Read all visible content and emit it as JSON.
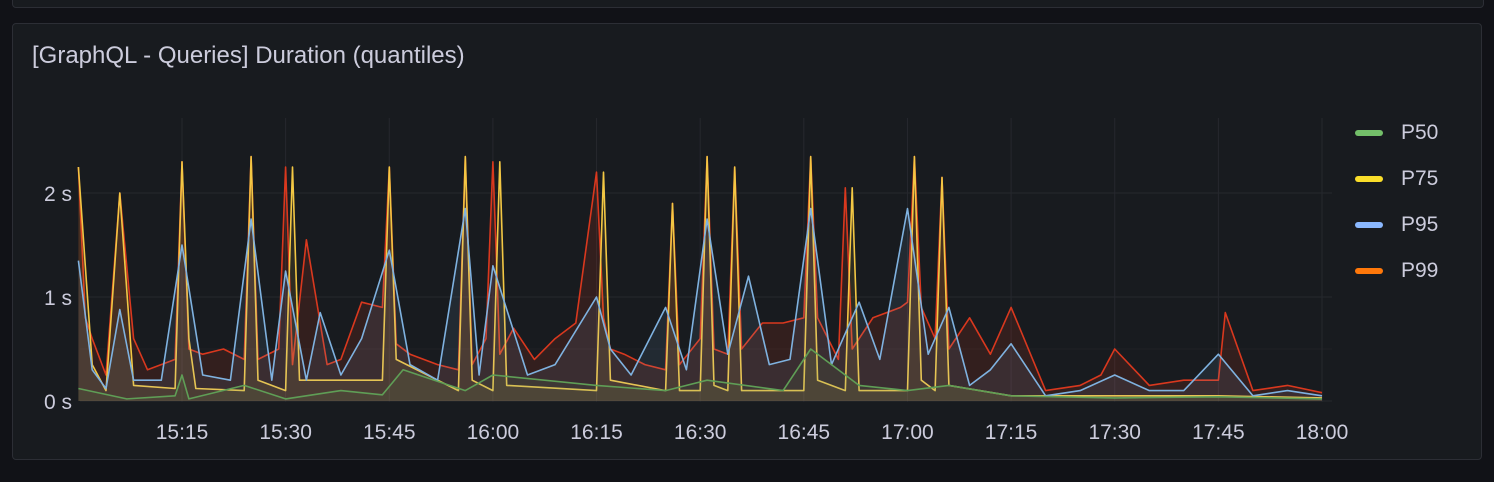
{
  "panel": {
    "title": "[GraphQL - Queries] Duration (quantiles)"
  },
  "legend": [
    {
      "label": "P50",
      "color": "#73bf69"
    },
    {
      "label": "P75",
      "color": "#fade2a"
    },
    {
      "label": "P95",
      "color": "#8ab8ff"
    },
    {
      "label": "P99",
      "color": "#ff780a"
    }
  ],
  "chart_data": {
    "type": "area",
    "title": "[GraphQL - Queries] Duration (quantiles)",
    "xlabel": "",
    "ylabel": "",
    "x_ticks": [
      "15:15",
      "15:30",
      "15:45",
      "16:00",
      "16:15",
      "16:30",
      "16:45",
      "17:00",
      "17:15",
      "17:30",
      "17:45",
      "18:00"
    ],
    "y_ticks": [
      "0 s",
      "1 s",
      "2 s"
    ],
    "y_tick_values": [
      0,
      1,
      2
    ],
    "xlim_minutes_from_15_00": [
      0,
      180
    ],
    "ylim": [
      0,
      2.5
    ],
    "grid": true,
    "legend_position": "right",
    "series": [
      {
        "name": "P50",
        "color": "#73bf69",
        "x": [
          "15:00",
          "15:07",
          "15:14",
          "15:15",
          "15:16",
          "15:24",
          "15:30",
          "15:38",
          "15:44",
          "15:47",
          "15:56",
          "16:00",
          "16:15",
          "16:25",
          "16:31",
          "16:42",
          "16:46",
          "16:53",
          "17:00",
          "17:06",
          "17:15",
          "17:30",
          "17:45",
          "18:00"
        ],
        "values": [
          0.12,
          0.02,
          0.05,
          0.25,
          0.02,
          0.15,
          0.02,
          0.1,
          0.06,
          0.3,
          0.1,
          0.25,
          0.15,
          0.1,
          0.2,
          0.1,
          0.5,
          0.15,
          0.1,
          0.15,
          0.05,
          0.03,
          0.04,
          0.02
        ]
      },
      {
        "name": "P75",
        "color": "#fade2a",
        "x": [
          "15:00",
          "15:02",
          "15:04",
          "15:06",
          "15:08",
          "15:14",
          "15:15",
          "15:16",
          "15:17",
          "15:24",
          "15:25",
          "15:26",
          "15:30",
          "15:31",
          "15:32",
          "15:44",
          "15:45",
          "15:46",
          "15:55",
          "15:56",
          "15:57",
          "16:00",
          "16:01",
          "16:02",
          "16:15",
          "16:16",
          "16:17",
          "16:25",
          "16:26",
          "16:27",
          "16:30",
          "16:31",
          "16:32",
          "16:34",
          "16:35",
          "16:36",
          "16:45",
          "16:46",
          "16:47",
          "16:51",
          "16:52",
          "16:53",
          "17:00",
          "17:01",
          "17:02",
          "17:04",
          "17:05",
          "17:06",
          "17:15",
          "17:30",
          "17:45",
          "18:00"
        ],
        "values": [
          2.25,
          0.35,
          0.1,
          2.0,
          0.15,
          0.12,
          2.3,
          0.6,
          0.12,
          0.1,
          2.35,
          0.2,
          0.1,
          2.25,
          0.2,
          0.2,
          2.25,
          0.4,
          0.1,
          2.35,
          0.2,
          0.1,
          2.3,
          0.15,
          0.1,
          2.2,
          0.2,
          0.1,
          1.9,
          0.1,
          0.1,
          2.35,
          0.15,
          0.1,
          2.25,
          0.1,
          0.1,
          2.35,
          0.2,
          0.1,
          2.05,
          0.1,
          0.1,
          2.35,
          0.2,
          0.1,
          2.15,
          0.15,
          0.05,
          0.05,
          0.05,
          0.03
        ]
      },
      {
        "name": "P95",
        "color": "#8ab8ff",
        "x": [
          "15:00",
          "15:02",
          "15:04",
          "15:06",
          "15:08",
          "15:12",
          "15:15",
          "15:18",
          "15:22",
          "15:25",
          "15:28",
          "15:30",
          "15:33",
          "15:35",
          "15:38",
          "15:41",
          "15:45",
          "15:48",
          "15:52",
          "15:56",
          "15:58",
          "16:00",
          "16:05",
          "16:09",
          "16:15",
          "16:17",
          "16:20",
          "16:25",
          "16:28",
          "16:31",
          "16:34",
          "16:37",
          "16:40",
          "16:43",
          "16:46",
          "16:49",
          "16:53",
          "16:56",
          "17:00",
          "17:03",
          "17:06",
          "17:09",
          "17:12",
          "17:15",
          "17:20",
          "17:25",
          "17:30",
          "17:35",
          "17:40",
          "17:45",
          "17:50",
          "17:55",
          "18:00"
        ],
        "values": [
          1.35,
          0.3,
          0.12,
          0.88,
          0.2,
          0.2,
          1.5,
          0.25,
          0.2,
          1.75,
          0.2,
          1.25,
          0.2,
          0.85,
          0.25,
          0.6,
          1.45,
          0.35,
          0.2,
          1.85,
          0.25,
          1.3,
          0.25,
          0.35,
          1.0,
          0.5,
          0.25,
          0.9,
          0.3,
          1.75,
          0.45,
          1.2,
          0.35,
          0.4,
          1.85,
          0.35,
          0.95,
          0.4,
          1.85,
          0.45,
          0.9,
          0.15,
          0.3,
          0.55,
          0.05,
          0.1,
          0.25,
          0.1,
          0.1,
          0.45,
          0.05,
          0.1,
          0.05
        ]
      },
      {
        "name": "P99",
        "color": "#ff780a",
        "x": [
          "15:00",
          "15:01",
          "15:02",
          "15:04",
          "15:06",
          "15:08",
          "15:10",
          "15:14",
          "15:15",
          "15:16",
          "15:18",
          "15:21",
          "15:24",
          "15:25",
          "15:26",
          "15:29",
          "15:30",
          "15:31",
          "15:33",
          "15:35",
          "15:36",
          "15:38",
          "15:41",
          "15:44",
          "15:45",
          "15:46",
          "15:48",
          "15:52",
          "15:55",
          "15:56",
          "15:57",
          "15:59",
          "16:00",
          "16:01",
          "16:03",
          "16:06",
          "16:09",
          "16:12",
          "16:15",
          "16:16",
          "16:17",
          "16:19",
          "16:22",
          "16:25",
          "16:26",
          "16:27",
          "16:30",
          "16:31",
          "16:32",
          "16:34",
          "16:35",
          "16:36",
          "16:39",
          "16:42",
          "16:45",
          "16:46",
          "16:47",
          "16:50",
          "16:51",
          "16:52",
          "16:55",
          "16:59",
          "17:00",
          "17:01",
          "17:02",
          "17:04",
          "17:05",
          "17:06",
          "17:09",
          "17:12",
          "17:15",
          "17:20",
          "17:25",
          "17:28",
          "17:30",
          "17:35",
          "17:40",
          "17:45",
          "17:46",
          "17:50",
          "17:55",
          "18:00"
        ],
        "values": [
          2.25,
          0.8,
          0.6,
          0.25,
          2.0,
          0.6,
          0.3,
          0.4,
          2.3,
          0.5,
          0.45,
          0.5,
          0.4,
          2.35,
          0.4,
          0.5,
          2.25,
          0.35,
          1.55,
          0.75,
          0.35,
          0.4,
          0.95,
          0.9,
          2.25,
          0.55,
          0.45,
          0.35,
          0.3,
          2.35,
          0.35,
          0.6,
          2.3,
          0.45,
          0.7,
          0.4,
          0.6,
          0.75,
          2.2,
          0.8,
          0.5,
          0.45,
          0.35,
          0.3,
          1.9,
          0.35,
          0.6,
          2.35,
          0.5,
          0.45,
          2.25,
          0.5,
          0.75,
          0.75,
          0.8,
          2.35,
          0.8,
          0.4,
          2.05,
          0.5,
          0.8,
          0.9,
          0.95,
          2.35,
          0.9,
          0.6,
          2.15,
          0.5,
          0.8,
          0.45,
          0.9,
          0.1,
          0.15,
          0.25,
          0.5,
          0.15,
          0.2,
          0.2,
          0.85,
          0.1,
          0.15,
          0.08
        ]
      }
    ]
  }
}
